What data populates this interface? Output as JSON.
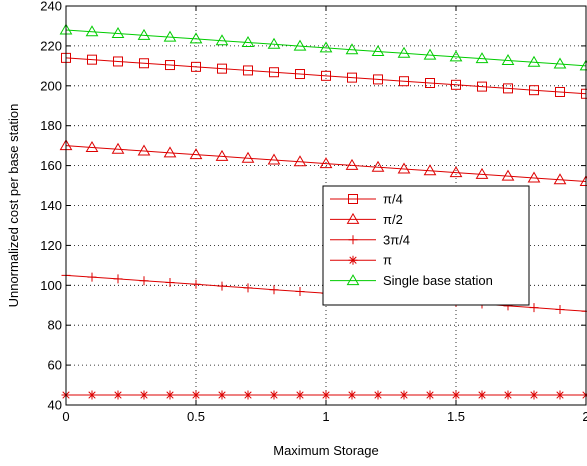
{
  "chart_data": {
    "type": "line",
    "title": "",
    "xlabel": "Maximum Storage",
    "ylabel": "Unnormalized cost per base station",
    "xlim": [
      0,
      2
    ],
    "ylim": [
      40,
      240
    ],
    "xticks": [
      0,
      0.5,
      1,
      1.5,
      2
    ],
    "xtick_labels": [
      "0",
      "0.5",
      "1",
      "1.5",
      "2"
    ],
    "yticks": [
      40,
      60,
      80,
      100,
      120,
      140,
      160,
      180,
      200,
      220,
      240
    ],
    "ytick_labels": [
      "40",
      "60",
      "80",
      "100",
      "120",
      "140",
      "160",
      "180",
      "200",
      "220",
      "240"
    ],
    "grid": true,
    "legend_position": "center-right",
    "x": [
      0,
      0.1,
      0.2,
      0.3,
      0.4,
      0.5,
      0.6,
      0.7,
      0.8,
      0.9,
      1.0,
      1.1,
      1.2,
      1.3,
      1.4,
      1.5,
      1.6,
      1.7,
      1.8,
      1.9,
      2.0
    ],
    "series": [
      {
        "name": "π/4",
        "color": "#dd0000",
        "marker": "square",
        "values": [
          214,
          213.1,
          212.2,
          211.3,
          210.4,
          209.5,
          208.6,
          207.7,
          206.8,
          205.9,
          205,
          204.1,
          203.2,
          202.3,
          201.4,
          200.5,
          199.6,
          198.7,
          197.8,
          196.9,
          196
        ]
      },
      {
        "name": "π/2",
        "color": "#dd0000",
        "marker": "triangle",
        "values": [
          170,
          169.1,
          168.2,
          167.3,
          166.4,
          165.5,
          164.6,
          163.7,
          162.8,
          161.9,
          161,
          160.1,
          159.2,
          158.3,
          157.4,
          156.5,
          155.6,
          154.7,
          153.8,
          152.9,
          152
        ]
      },
      {
        "name": "3π/4",
        "color": "#dd0000",
        "marker": "plus",
        "values": [
          105,
          104.1,
          103.2,
          102.3,
          101.4,
          100.5,
          99.6,
          98.7,
          97.8,
          96.9,
          96,
          95.1,
          94.2,
          93.3,
          92.4,
          91.5,
          90.6,
          89.7,
          88.8,
          87.9,
          87
        ]
      },
      {
        "name": "π",
        "color": "#dd0000",
        "marker": "asterisk",
        "values": [
          45,
          45,
          45,
          45,
          45,
          45,
          45,
          45,
          45,
          45,
          45,
          45,
          45,
          45,
          45,
          45,
          45,
          45,
          45,
          45,
          45
        ]
      },
      {
        "name": "Single base station",
        "color": "#00cc00",
        "marker": "triangle",
        "values": [
          228,
          227.1,
          226.2,
          225.3,
          224.4,
          223.5,
          222.6,
          221.7,
          220.8,
          219.9,
          219,
          218.1,
          217.2,
          216.3,
          215.4,
          214.5,
          213.6,
          212.7,
          211.8,
          210.9,
          210
        ]
      }
    ]
  }
}
